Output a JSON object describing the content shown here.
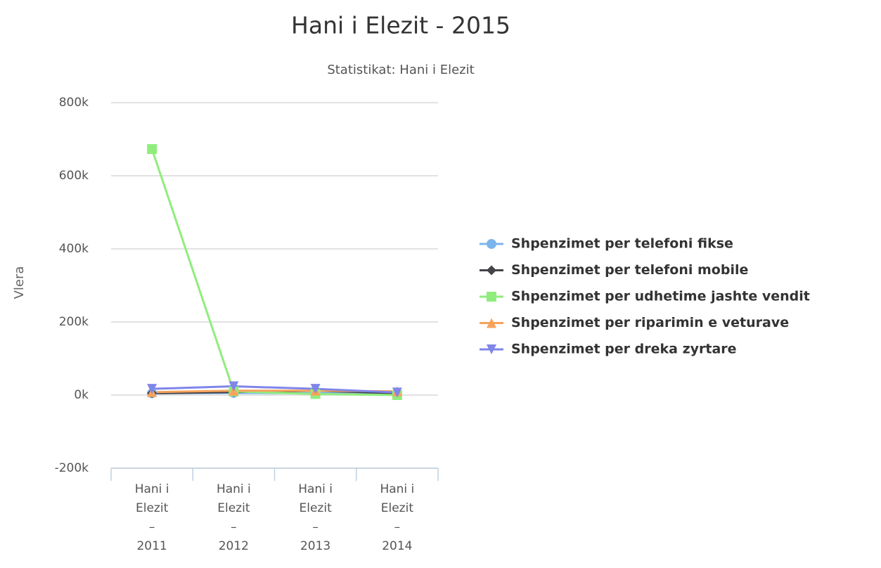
{
  "chart_data": {
    "type": "line",
    "title": "Hani i Elezit - 2015",
    "subtitle": "Statistikat: Hani i Elezit",
    "y_axis_label": "Vlera",
    "categories": [
      "Hani i Elezit – 2011",
      "Hani i Elezit – 2012",
      "Hani i Elezit – 2013",
      "Hani i Elezit – 2014"
    ],
    "series": [
      {
        "name": "Shpenzimet per telefoni fikse",
        "color": "#7cb5ec",
        "marker": "circle",
        "values": [
          5000,
          6000,
          5000,
          4000
        ]
      },
      {
        "name": "Shpenzimet per telefoni mobile",
        "color": "#434348",
        "marker": "diamond",
        "values": [
          5000,
          8000,
          12000,
          5000
        ]
      },
      {
        "name": "Shpenzimet per udhetime jashte vendit",
        "color": "#90ed7d",
        "marker": "square",
        "values": [
          673000,
          10000,
          3000,
          0
        ]
      },
      {
        "name": "Shpenzimet per riparimin e veturave",
        "color": "#f7a35c",
        "marker": "triangle",
        "values": [
          8000,
          12000,
          12000,
          10000
        ]
      },
      {
        "name": "Shpenzimet per dreka zyrtare",
        "color": "#8085e9",
        "marker": "triangle-down",
        "values": [
          17000,
          24000,
          17000,
          7000
        ]
      }
    ],
    "ylim": [
      -200000,
      800000
    ],
    "yticks": [
      {
        "value": -200000,
        "label": "-200k"
      },
      {
        "value": 0,
        "label": "0k"
      },
      {
        "value": 200000,
        "label": "200k"
      },
      {
        "value": 400000,
        "label": "400k"
      },
      {
        "value": 600000,
        "label": "600k"
      },
      {
        "value": 800000,
        "label": "800k"
      }
    ],
    "grid": true,
    "legend_position": "right"
  }
}
